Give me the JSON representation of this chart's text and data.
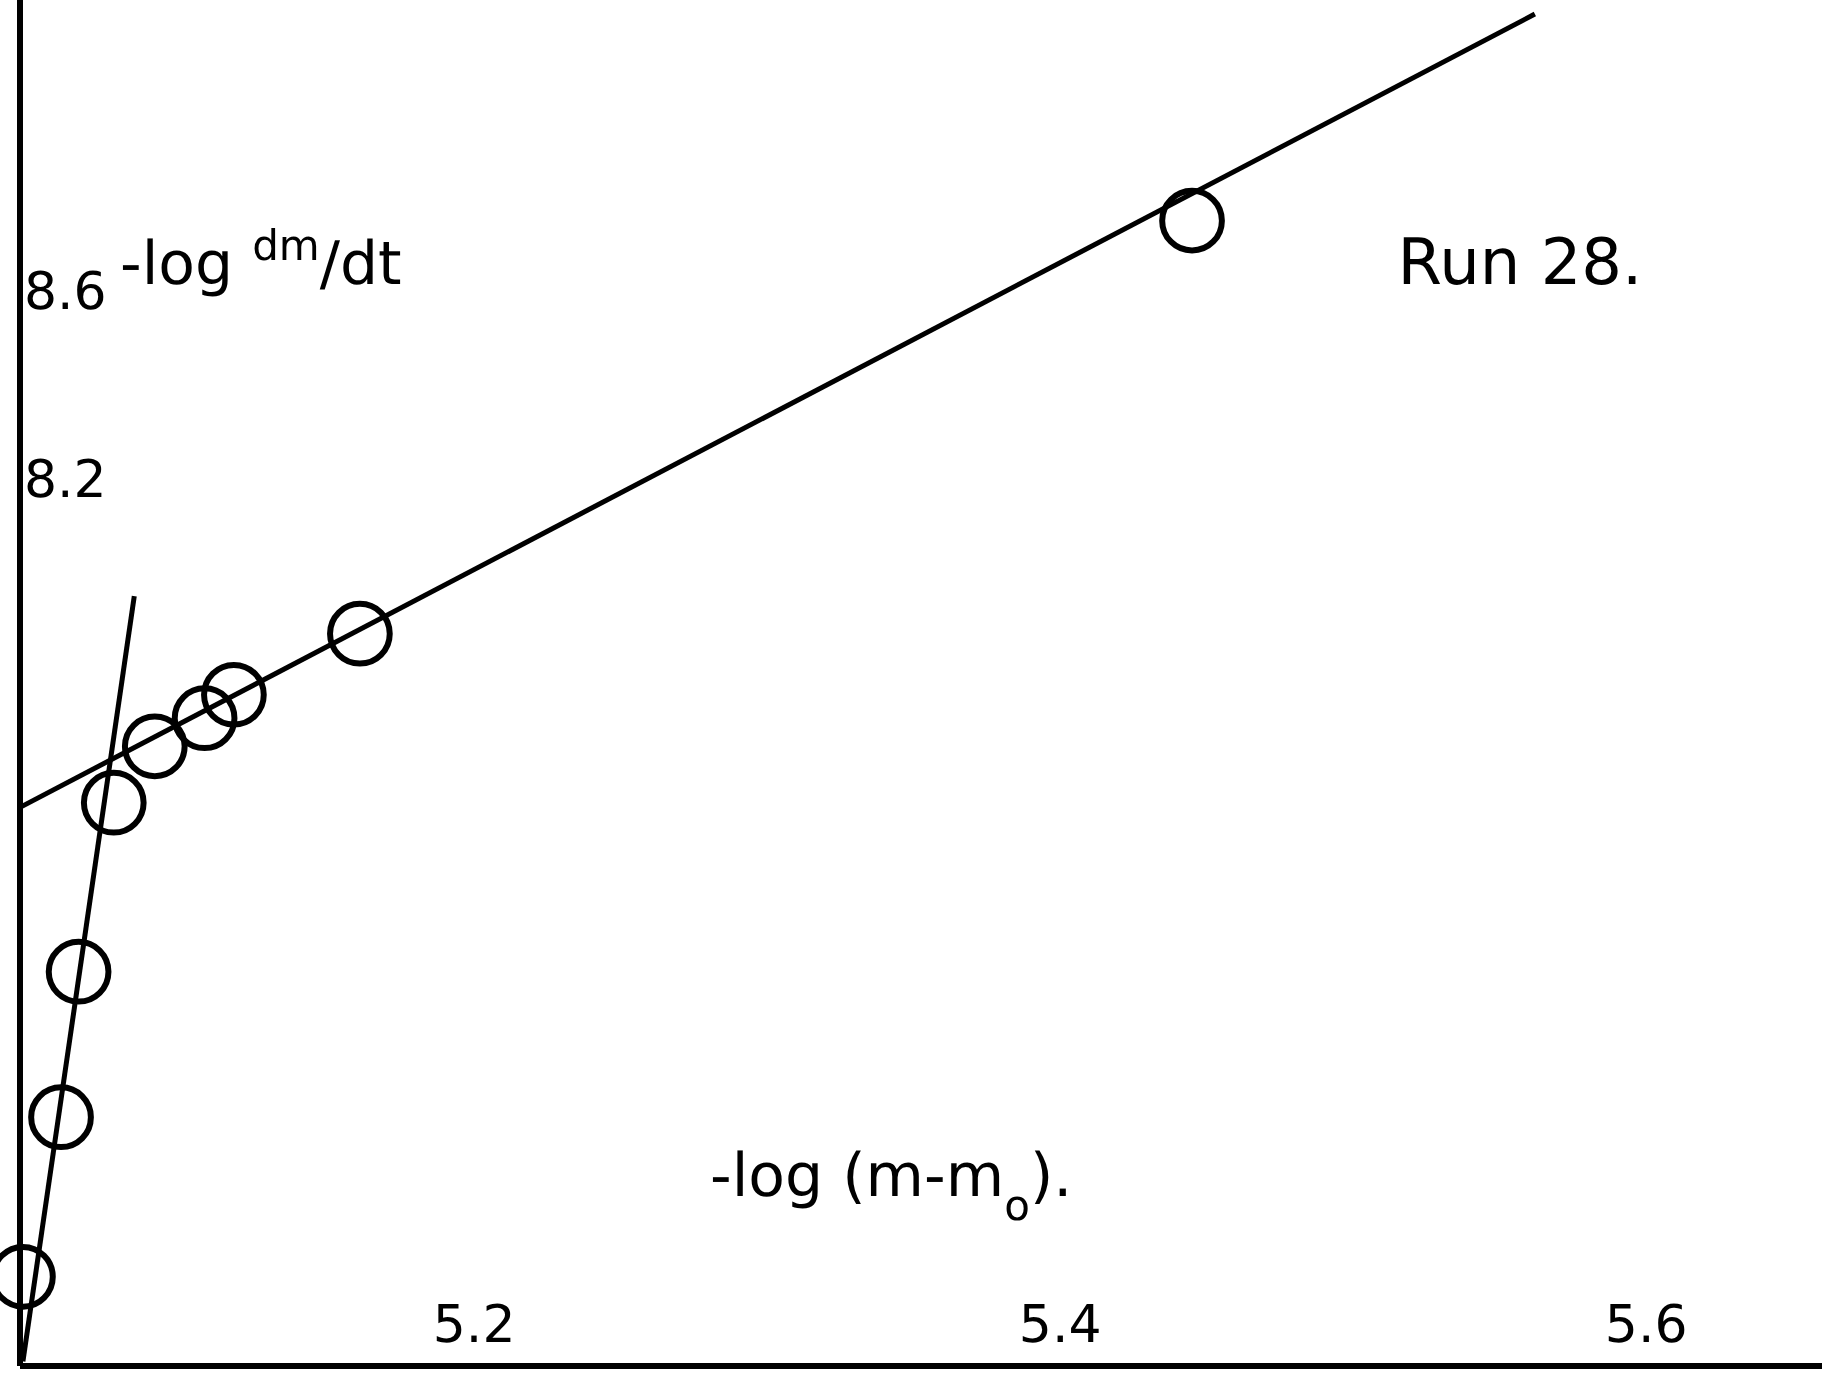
{
  "chart_data": {
    "type": "scatter",
    "xlabel": "-log (m-m$_{o}$).",
    "ylabel": "-log $^{dm}$/dt",
    "annotations": [
      "Run 28."
    ],
    "xlim": [
      5.045,
      5.66
    ],
    "ylim": [
      6.31,
      9.22
    ],
    "xticks": [
      5.2,
      5.4,
      5.6
    ],
    "yticks": [
      8.2,
      8.6
    ],
    "marker": "circle",
    "grid": false,
    "series": [
      {
        "color": "#000000",
        "x": [
          5.046,
          5.059,
          5.065,
          5.077,
          5.091,
          5.108,
          5.118,
          5.161,
          5.445
        ],
        "values": [
          6.5,
          6.84,
          7.15,
          7.51,
          7.63,
          7.69,
          7.74,
          7.87,
          8.75
        ]
      },
      {
        "type": "line",
        "color": "#000000",
        "marker": "none",
        "x": [
          5.045,
          5.562
        ],
        "values": [
          7.5,
          9.19
        ]
      },
      {
        "type": "line",
        "color": "#000000",
        "marker": "none",
        "x": [
          5.046,
          5.084
        ],
        "values": [
          6.32,
          7.95
        ]
      }
    ]
  }
}
